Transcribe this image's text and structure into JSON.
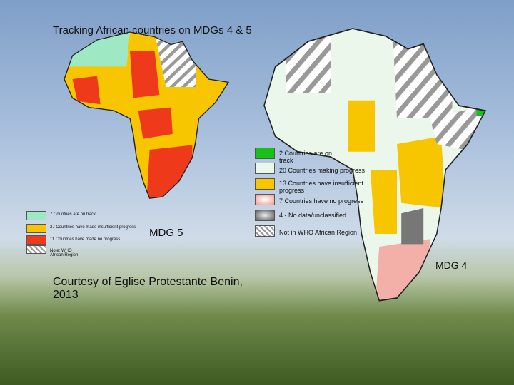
{
  "title": "Tracking  African countries on MDGs 4 & 5",
  "mdg5": {
    "label": "MDG 5",
    "legend": [
      "7 Countries are on track",
      "27 Countries have made insufficient progress",
      "11 Countries have made no progress",
      "Note: WHO African Region"
    ]
  },
  "mdg4": {
    "label": "MDG 4",
    "legend": [
      "2 Countries are on track",
      "20 Countries  making progress",
      "13 Countries have insufficient progress",
      "7 Countries have no progress",
      "4 - No data/unclassified",
      "Not in WHO African Region"
    ]
  },
  "credit": "Courtesy of Eglise Protestante Benin, 2013"
}
